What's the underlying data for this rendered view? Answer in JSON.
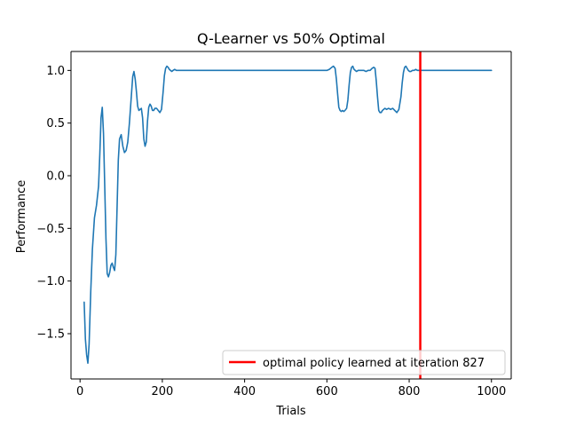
{
  "chart_data": {
    "type": "line",
    "title": "Q-Learner vs 50% Optimal",
    "xlabel": "Trials",
    "ylabel": "Performance",
    "xlim": [
      -22,
      1048
    ],
    "ylim": [
      -1.93,
      1.18
    ],
    "xticks": [
      0,
      200,
      400,
      600,
      800,
      1000
    ],
    "xtick_labels": [
      "0",
      "200",
      "400",
      "600",
      "800",
      "1000"
    ],
    "yticks": [
      -1.5,
      -1.0,
      -0.5,
      0.0,
      0.5,
      1.0
    ],
    "ytick_labels": [
      "−1.5",
      "−1.0",
      "−0.5",
      "0.0",
      "0.5",
      "1.0"
    ],
    "grid": false,
    "legend_position": "lower-right",
    "colors": {
      "series": "#1f77b4",
      "vline": "#ff0000"
    },
    "series": [
      {
        "name": "performance",
        "x": [
          10,
          13,
          16,
          19,
          22,
          26,
          30,
          35,
          40,
          45,
          48,
          51,
          54,
          57,
          60,
          63,
          66,
          69,
          72,
          75,
          78,
          81,
          84,
          87,
          90,
          93,
          96,
          100,
          104,
          108,
          112,
          116,
          120,
          124,
          128,
          131,
          134,
          137,
          140,
          143,
          146,
          149,
          152,
          155,
          158,
          161,
          164,
          167,
          170,
          173,
          176,
          179,
          182,
          186,
          190,
          194,
          198,
          202,
          205,
          208,
          211,
          214,
          217,
          220,
          223,
          226,
          230,
          234,
          238,
          242,
          250,
          300,
          400,
          500,
          600,
          606,
          612,
          616,
          620,
          623,
          626,
          629,
          632,
          635,
          638,
          641,
          644,
          648,
          651,
          654,
          657,
          660,
          663,
          666,
          669,
          672,
          676,
          680,
          685,
          690,
          695,
          700,
          705,
          710,
          714,
          717,
          720,
          723,
          726,
          729,
          732,
          735,
          738,
          741,
          745,
          750,
          755,
          760,
          765,
          770,
          775,
          780,
          783,
          786,
          789,
          792,
          795,
          798,
          801,
          804,
          808,
          812,
          816,
          820,
          825,
          830,
          850,
          900,
          950,
          1000
        ],
        "y": [
          -1.2,
          -1.55,
          -1.7,
          -1.78,
          -1.6,
          -1.1,
          -0.7,
          -0.4,
          -0.28,
          -0.1,
          0.2,
          0.55,
          0.65,
          0.4,
          -0.1,
          -0.6,
          -0.93,
          -0.96,
          -0.92,
          -0.85,
          -0.83,
          -0.87,
          -0.9,
          -0.75,
          -0.3,
          0.15,
          0.35,
          0.39,
          0.28,
          0.22,
          0.24,
          0.32,
          0.5,
          0.72,
          0.94,
          0.99,
          0.92,
          0.8,
          0.66,
          0.62,
          0.63,
          0.64,
          0.55,
          0.35,
          0.28,
          0.32,
          0.52,
          0.65,
          0.68,
          0.66,
          0.62,
          0.62,
          0.64,
          0.64,
          0.62,
          0.6,
          0.63,
          0.8,
          0.95,
          1.02,
          1.04,
          1.03,
          1.01,
          1.0,
          0.99,
          1.0,
          1.01,
          1.0,
          1.0,
          1.0,
          1.0,
          1.0,
          1.0,
          1.0,
          1.0,
          1.01,
          1.03,
          1.04,
          1.02,
          0.92,
          0.78,
          0.65,
          0.62,
          0.61,
          0.62,
          0.61,
          0.62,
          0.64,
          0.72,
          0.86,
          0.98,
          1.03,
          1.04,
          1.01,
          1.0,
          0.99,
          1.0,
          1.0,
          1.0,
          1.0,
          0.99,
          1.0,
          1.0,
          1.02,
          1.03,
          1.02,
          0.9,
          0.75,
          0.62,
          0.6,
          0.6,
          0.62,
          0.63,
          0.64,
          0.63,
          0.64,
          0.63,
          0.64,
          0.62,
          0.6,
          0.63,
          0.75,
          0.88,
          0.98,
          1.03,
          1.04,
          1.02,
          1.0,
          0.99,
          0.99,
          1.0,
          1.0,
          1.01,
          1.0,
          1.0,
          1.0,
          1.0,
          1.0,
          1.0,
          1.0
        ]
      }
    ],
    "vline": {
      "x": 827,
      "label": "optimal policy learned at iteration 827"
    }
  }
}
